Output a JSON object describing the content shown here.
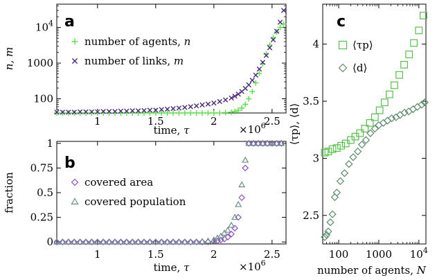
{
  "chart_data": [
    {
      "panel": "a",
      "type": "scatter",
      "xlabel": "time, τ",
      "ylabel": "n, m",
      "x_multiplier": "×10^6",
      "yscale": "log",
      "xlim": [
        0.65,
        2.62
      ],
      "ylim": [
        40,
        45000
      ],
      "xticks": [
        1,
        1.5,
        2,
        2.5
      ],
      "yticks": [
        {
          "value": 100,
          "label": "100"
        },
        {
          "value": 1000,
          "label": "1000"
        },
        {
          "value": 10000,
          "label": "10^4"
        }
      ],
      "legend_position": "upper-left",
      "series": [
        {
          "name": "number of agents, n",
          "marker": "plus",
          "color": "#55e04a",
          "x": [
            0.65,
            0.7,
            0.75,
            0.8,
            0.85,
            0.9,
            0.95,
            1.0,
            1.05,
            1.1,
            1.15,
            1.2,
            1.25,
            1.3,
            1.35,
            1.4,
            1.45,
            1.5,
            1.55,
            1.6,
            1.65,
            1.7,
            1.75,
            1.8,
            1.85,
            1.9,
            1.95,
            2.0,
            2.05,
            2.1,
            2.15,
            2.18,
            2.21,
            2.24,
            2.27,
            2.3,
            2.33,
            2.36,
            2.39,
            2.42,
            2.45,
            2.48,
            2.51,
            2.54,
            2.57,
            2.6
          ],
          "y": [
            40,
            40,
            40,
            40,
            40,
            40,
            40,
            40,
            40,
            40,
            40,
            40,
            40,
            40,
            40,
            40,
            40,
            40,
            40,
            40,
            40,
            40,
            40,
            40,
            40,
            40,
            40,
            40,
            40,
            41,
            42,
            44,
            48,
            55,
            70,
            100,
            160,
            280,
            520,
            950,
            1800,
            3200,
            5200,
            7500,
            10000,
            12500
          ]
        },
        {
          "name": "number of links, m",
          "marker": "cross",
          "color": "#4b2a7a",
          "x": [
            0.65,
            0.7,
            0.75,
            0.8,
            0.85,
            0.9,
            0.95,
            1.0,
            1.05,
            1.1,
            1.15,
            1.2,
            1.25,
            1.3,
            1.35,
            1.4,
            1.45,
            1.5,
            1.55,
            1.6,
            1.65,
            1.7,
            1.75,
            1.8,
            1.85,
            1.9,
            1.95,
            2.0,
            2.05,
            2.1,
            2.15,
            2.18,
            2.21,
            2.24,
            2.27,
            2.3,
            2.33,
            2.36,
            2.39,
            2.42,
            2.45,
            2.48,
            2.51,
            2.54,
            2.57,
            2.6
          ],
          "y": [
            42,
            42,
            42,
            42,
            43,
            43,
            43,
            43,
            44,
            44,
            44,
            45,
            45,
            46,
            46,
            47,
            48,
            48,
            50,
            51,
            53,
            55,
            57,
            60,
            63,
            67,
            71,
            76,
            84,
            93,
            105,
            118,
            135,
            160,
            195,
            245,
            330,
            460,
            680,
            1050,
            1650,
            2700,
            4500,
            7800,
            14000,
            30000
          ]
        }
      ]
    },
    {
      "panel": "b",
      "type": "scatter",
      "xlabel": "time, τ",
      "ylabel": "fraction",
      "x_multiplier": "×10^6",
      "xlim": [
        0.65,
        2.62
      ],
      "ylim": [
        -0.02,
        1.02
      ],
      "xticks": [
        1,
        1.5,
        2,
        2.5
      ],
      "yticks": [
        0,
        0.25,
        0.5,
        0.75,
        1
      ],
      "legend_position": "upper-left",
      "series": [
        {
          "name": "covered area",
          "marker": "diamond",
          "color": "#8a4fc4",
          "x": [
            0.65,
            0.7,
            0.75,
            0.8,
            0.85,
            0.9,
            0.95,
            1.0,
            1.05,
            1.1,
            1.15,
            1.2,
            1.25,
            1.3,
            1.35,
            1.4,
            1.45,
            1.5,
            1.55,
            1.6,
            1.65,
            1.7,
            1.75,
            1.8,
            1.85,
            1.9,
            1.95,
            2.0,
            2.03,
            2.06,
            2.09,
            2.12,
            2.15,
            2.18,
            2.21,
            2.24,
            2.27,
            2.3,
            2.34,
            2.38,
            2.42,
            2.46,
            2.5,
            2.54,
            2.58
          ],
          "y": [
            0,
            0,
            0,
            0,
            0,
            0,
            0,
            0,
            0,
            0,
            0,
            0,
            0,
            0,
            0,
            0,
            0,
            0,
            0,
            0,
            0,
            0,
            0,
            0,
            0,
            0,
            0,
            0.005,
            0.01,
            0.02,
            0.03,
            0.05,
            0.08,
            0.14,
            0.25,
            0.45,
            0.75,
            1,
            1,
            1,
            1,
            1,
            1,
            1,
            1
          ]
        },
        {
          "name": "covered population",
          "marker": "triangle",
          "color": "#6e8a8a",
          "x": [
            0.65,
            0.7,
            0.75,
            0.8,
            0.85,
            0.9,
            0.95,
            1.0,
            1.05,
            1.1,
            1.15,
            1.2,
            1.25,
            1.3,
            1.35,
            1.4,
            1.45,
            1.5,
            1.55,
            1.6,
            1.65,
            1.7,
            1.75,
            1.8,
            1.85,
            1.9,
            1.95,
            2.0,
            2.03,
            2.06,
            2.09,
            2.12,
            2.15,
            2.18,
            2.21,
            2.24,
            2.27,
            2.3,
            2.34,
            2.38,
            2.42,
            2.46,
            2.5,
            2.54,
            2.58
          ],
          "y": [
            0,
            0,
            0,
            0,
            0,
            0,
            0,
            0,
            0,
            0,
            0,
            0,
            0,
            0,
            0,
            0,
            0,
            0,
            0,
            0,
            0,
            0,
            0,
            0,
            0,
            0.005,
            0.01,
            0.02,
            0.04,
            0.06,
            0.09,
            0.12,
            0.17,
            0.25,
            0.38,
            0.58,
            0.83,
            1,
            1,
            1,
            1,
            1,
            1,
            1,
            1
          ]
        }
      ]
    },
    {
      "panel": "c",
      "type": "scatter",
      "xlabel": "number of agents, N",
      "ylabel": "⟨τp⟩, ⟨d⟩",
      "xscale": "log",
      "xlim": [
        40,
        15000
      ],
      "ylim": [
        2.25,
        4.35
      ],
      "xticks": [
        {
          "value": 100,
          "label": "100"
        },
        {
          "value": 1000,
          "label": "1000"
        },
        {
          "value": 10000,
          "label": "10^4"
        }
      ],
      "yticks": [
        2.5,
        3,
        3.5,
        4
      ],
      "legend_position": "upper-left",
      "series": [
        {
          "name": "⟨τp⟩",
          "marker": "square",
          "color": "#55c04a",
          "x": [
            45,
            55,
            70,
            90,
            115,
            150,
            200,
            260,
            340,
            450,
            600,
            800,
            1050,
            1400,
            1850,
            2450,
            3250,
            4300,
            5700,
            7500,
            10000,
            13000
          ],
          "y": [
            3.05,
            3.06,
            3.08,
            3.09,
            3.11,
            3.13,
            3.16,
            3.19,
            3.22,
            3.26,
            3.31,
            3.36,
            3.42,
            3.49,
            3.56,
            3.64,
            3.73,
            3.82,
            3.91,
            4.01,
            4.12,
            4.25
          ]
        },
        {
          "name": "⟨d⟩",
          "marker": "diamond",
          "color": "#5a8a6a",
          "x": [
            45,
            50,
            55,
            62,
            70,
            80,
            90,
            110,
            140,
            180,
            230,
            300,
            380,
            480,
            620,
            800,
            1000,
            1300,
            1650,
            2100,
            2700,
            3400,
            4400,
            5600,
            7200,
            9200,
            11800,
            14000
          ],
          "y": [
            2.31,
            2.33,
            2.36,
            2.44,
            2.51,
            2.66,
            2.7,
            2.8,
            2.87,
            2.95,
            3.01,
            3.06,
            3.12,
            3.16,
            3.22,
            3.26,
            3.29,
            3.31,
            3.33,
            3.35,
            3.36,
            3.38,
            3.4,
            3.41,
            3.43,
            3.45,
            3.47,
            3.49
          ]
        }
      ]
    }
  ]
}
